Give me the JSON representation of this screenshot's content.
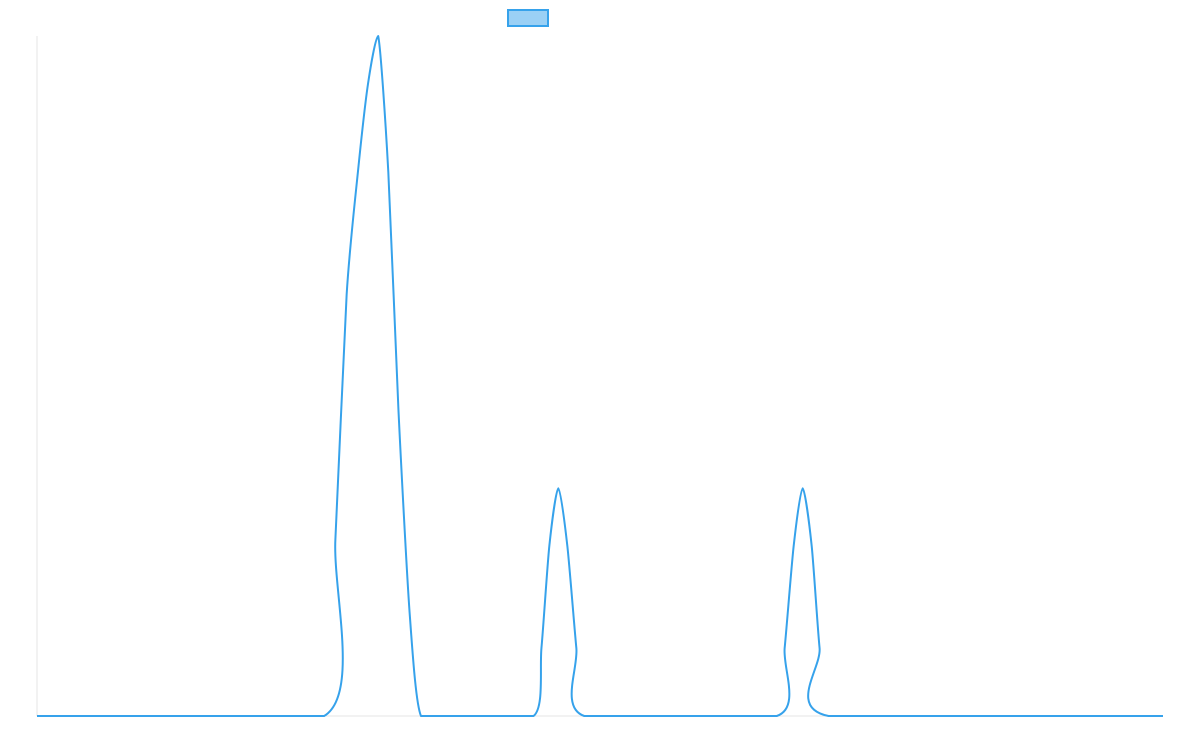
{
  "chart_data": {
    "type": "line",
    "title": "",
    "xlabel": "",
    "ylabel": "",
    "xlim": [
      0,
      100
    ],
    "ylim": [
      0,
      1
    ],
    "grid": false,
    "legend": "top-center",
    "series": [
      {
        "color": "#36a2eb",
        "fill": "#9ad0f5",
        "x": [
          0,
          25.5,
          26.5,
          27.5,
          28.5,
          29.4,
          30.3,
          31.2,
          32.1,
          33.1,
          34.1,
          36.9,
          44.1,
          44.8,
          45.5,
          46.3,
          47.1,
          47.9,
          48.6,
          65.7,
          66.4,
          67.2,
          68.0,
          68.8,
          69.5,
          70.3,
          100
        ],
        "y": [
          0,
          0,
          0.26,
          0.62,
          0.8,
          0.93,
          1.0,
          0.8,
          0.45,
          0.15,
          0,
          0,
          0,
          0.1,
          0.25,
          0.335,
          0.25,
          0.1,
          0,
          0,
          0.1,
          0.25,
          0.335,
          0.25,
          0.1,
          0,
          0
        ]
      }
    ]
  }
}
